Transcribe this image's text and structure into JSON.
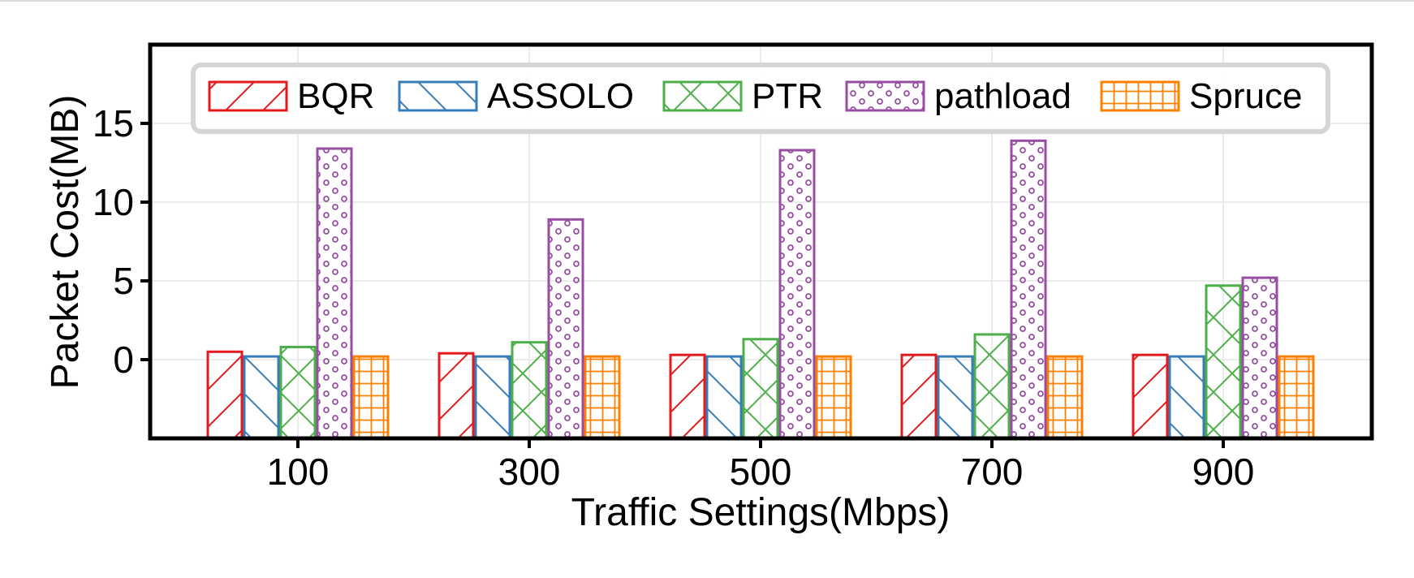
{
  "chart_data": {
    "type": "bar",
    "title": "",
    "xlabel": "Traffic Settings(Mbps)",
    "ylabel": "Packet Cost(MB)",
    "categories": [
      "100",
      "300",
      "500",
      "700",
      "900"
    ],
    "yticks": [
      "0",
      "5",
      "10",
      "15"
    ],
    "ylim": [
      -5,
      20
    ],
    "grid": true,
    "legend_position": "top",
    "series": [
      {
        "name": "BQR",
        "values": [
          0.5,
          0.4,
          0.3,
          0.3,
          0.3
        ],
        "color": "#e41a1c",
        "pattern": "diagonal-forward"
      },
      {
        "name": "ASSOLO",
        "values": [
          0.2,
          0.2,
          0.2,
          0.2,
          0.2
        ],
        "color": "#377eb8",
        "pattern": "diagonal-back"
      },
      {
        "name": "PTR",
        "values": [
          0.8,
          1.1,
          1.3,
          1.6,
          4.7
        ],
        "color": "#4daf4a",
        "pattern": "crosshatch"
      },
      {
        "name": "pathload",
        "values": [
          13.4,
          8.9,
          13.3,
          13.9,
          5.2
        ],
        "color": "#984ea3",
        "pattern": "circles"
      },
      {
        "name": "Spruce",
        "values": [
          0.2,
          0.2,
          0.2,
          0.2,
          0.2
        ],
        "color": "#ff7f00",
        "pattern": "grid"
      }
    ]
  }
}
